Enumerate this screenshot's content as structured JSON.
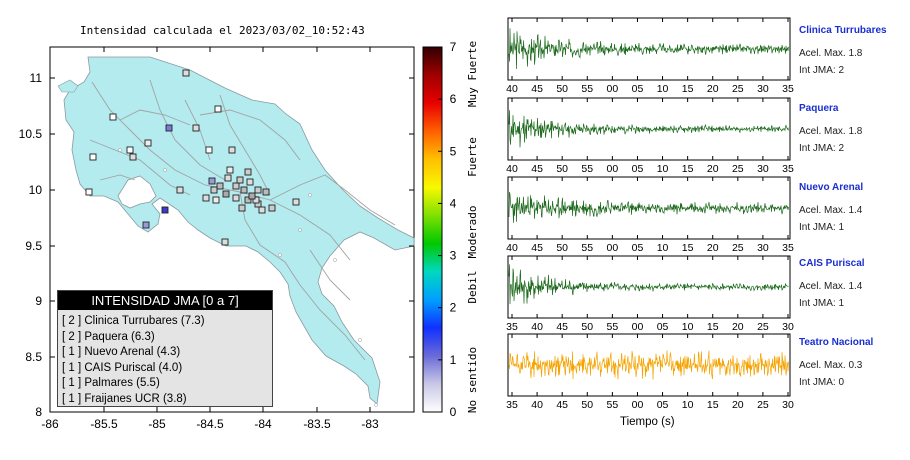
{
  "map": {
    "title": "Intensidad calculada el 2023/03/02_10:52:43",
    "lon_ticks": [
      "-86",
      "-85.5",
      "-85",
      "-84.5",
      "-84",
      "-83.5",
      "-83"
    ],
    "lat_ticks": [
      "11",
      "10.5",
      "10",
      "9.5",
      "9",
      "8.5",
      "8"
    ],
    "lon_range": [
      -86,
      -82.5
    ],
    "lat_range": [
      8,
      11.3
    ],
    "land_color": "#b3ebee",
    "road_color": "#9a9a9a",
    "station_marker": "square"
  },
  "colorbar": {
    "ticks": [
      "0",
      "1",
      "2",
      "3",
      "4",
      "5",
      "6",
      "7"
    ],
    "category_labels": [
      "No sentido",
      "Debil",
      "Moderado",
      "Fuerte",
      "Muy Fuerte"
    ],
    "colors": [
      "#ffffff",
      "#c8c8e6",
      "#6a6ad8",
      "#1030ff",
      "#00a0ff",
      "#00d8c0",
      "#00c800",
      "#80e000",
      "#f8f800",
      "#ffc000",
      "#ff6000",
      "#e80000",
      "#a00000",
      "#300000"
    ]
  },
  "legend": {
    "title": "INTENSIDAD JMA [0 a 7]",
    "entries": [
      "[ 2 ]  Clinica Turrubares (7.3)",
      "[ 2 ]  Paquera (6.3)",
      "[ 1 ]  Nuevo Arenal (4.3)",
      "[ 1 ]  CAIS Puriscal (4.0)",
      "[ 1 ]  Palmares (5.5)",
      "[ 1 ]  Fraijanes UCR (3.8)"
    ]
  },
  "stations": [
    {
      "name": "Clinica Turrubares",
      "accel": "Acel. Max. 1.8",
      "int": "Int JMA: 2",
      "color": "#1f6b1f",
      "amp": 0.9,
      "decay": 2.0,
      "noise": 0.22,
      "seed": 3,
      "ticks": [
        "40",
        "45",
        "50",
        "55",
        "00",
        "05",
        "10",
        "15",
        "20",
        "25",
        "30",
        "35"
      ]
    },
    {
      "name": "Paquera",
      "accel": "Acel. Max. 1.8",
      "int": "Int JMA: 2",
      "color": "#1f6b1f",
      "amp": 0.95,
      "decay": 2.4,
      "noise": 0.16,
      "seed": 11,
      "ticks": [
        "40",
        "45",
        "50",
        "55",
        "00",
        "05",
        "10",
        "15",
        "20",
        "25",
        "30",
        "35"
      ]
    },
    {
      "name": "Nuevo Arenal",
      "accel": "Acel. Max. 1.4",
      "int": "Int JMA: 1",
      "color": "#1f6b1f",
      "amp": 0.75,
      "decay": 1.4,
      "noise": 0.3,
      "seed": 23,
      "ticks": [
        "40",
        "45",
        "50",
        "55",
        "00",
        "05",
        "10",
        "15",
        "20",
        "25",
        "30",
        "35"
      ]
    },
    {
      "name": "CAIS Puriscal",
      "accel": "Acel. Max. 1.4",
      "int": "Int JMA: 1",
      "color": "#1f6b1f",
      "amp": 0.95,
      "decay": 2.2,
      "noise": 0.14,
      "seed": 41,
      "ticks": [
        "35",
        "40",
        "45",
        "50",
        "55",
        "00",
        "05",
        "10",
        "15",
        "20",
        "25",
        "30"
      ]
    },
    {
      "name": "Teatro Nacional",
      "accel": "Acel. Max. 0.3",
      "int": "Int JMA: 0",
      "color": "#f5a300",
      "amp": 0.55,
      "decay": 0.0,
      "noise": 0.6,
      "seed": 57,
      "ticks": [
        "35",
        "40",
        "45",
        "50",
        "55",
        "00",
        "05",
        "10",
        "15",
        "20",
        "25",
        "30"
      ]
    }
  ],
  "time_axis_label": "Tiempo (s)"
}
